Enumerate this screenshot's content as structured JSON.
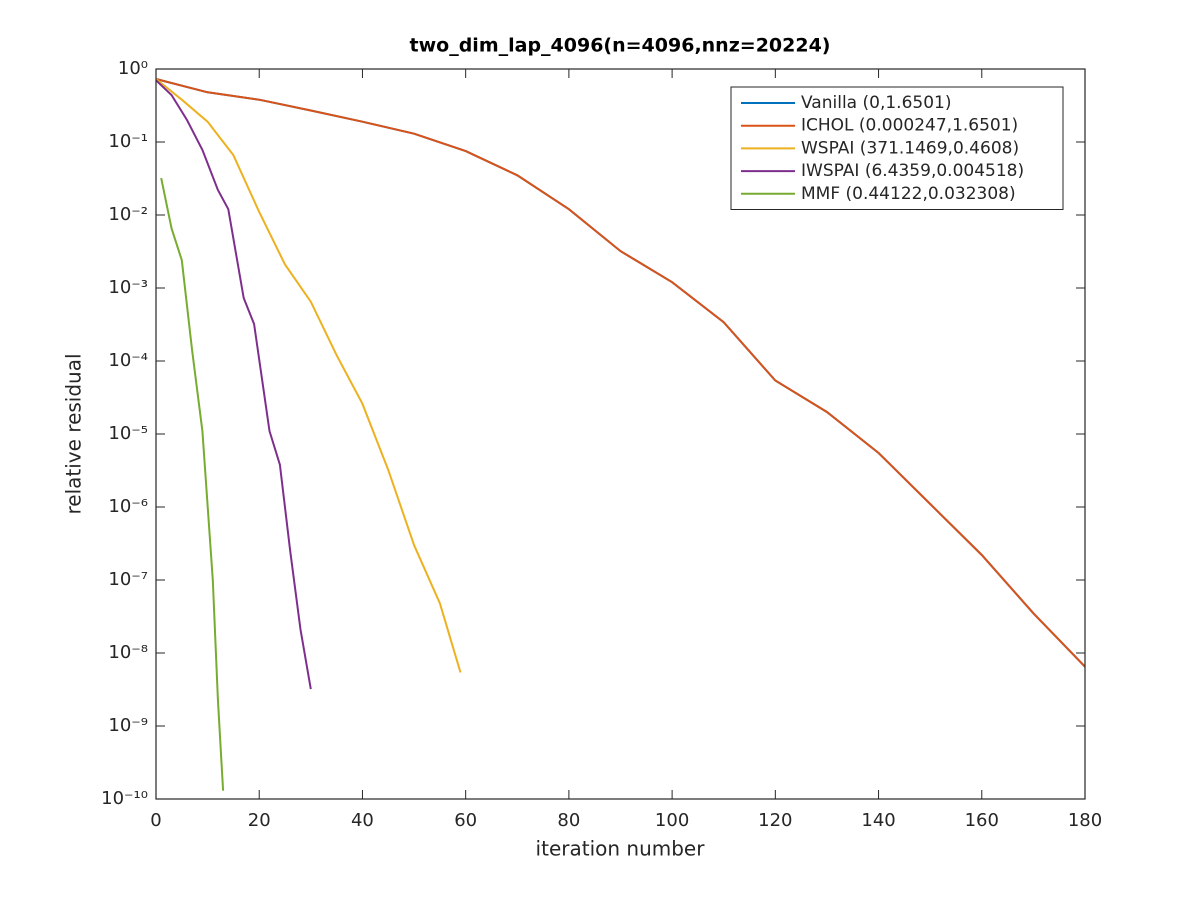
{
  "chart_data": {
    "type": "line",
    "title": "two_dim_lap_4096(n=4096,nnz=20224)",
    "x_label": "iteration number",
    "y_label": "relative residual",
    "xlim": [
      0,
      180
    ],
    "xticks": [
      0,
      20,
      40,
      60,
      80,
      100,
      120,
      140,
      160,
      180
    ],
    "ylim": [
      1e-10,
      1
    ],
    "ylog": true,
    "yticks": [
      {
        "value": 1,
        "label": "10⁰"
      },
      {
        "value": 0.1,
        "label": "10⁻¹"
      },
      {
        "value": 0.01,
        "label": "10⁻²"
      },
      {
        "value": 0.001,
        "label": "10⁻³"
      },
      {
        "value": 0.0001,
        "label": "10⁻⁴"
      },
      {
        "value": 1e-05,
        "label": "10⁻⁵"
      },
      {
        "value": 1e-06,
        "label": "10⁻⁶"
      },
      {
        "value": 1e-07,
        "label": "10⁻⁷"
      },
      {
        "value": 1e-08,
        "label": "10⁻⁸"
      },
      {
        "value": 1e-09,
        "label": "10⁻⁹"
      },
      {
        "value": 1e-10,
        "label": "10⁻¹⁰"
      }
    ],
    "legend": "upper right",
    "series": [
      {
        "name": "Vanilla (0,1.6501)",
        "color": "#0072BD",
        "x": [
          0,
          10,
          20,
          30,
          40,
          50,
          60,
          70,
          80,
          90,
          100,
          110,
          120,
          130,
          140,
          150,
          160,
          170,
          180
        ],
        "values": [
          0.73,
          0.48,
          0.38,
          0.27,
          0.19,
          0.13,
          0.075,
          0.035,
          0.012,
          0.0032,
          0.0012,
          0.00034,
          5.4e-05,
          2e-05,
          5.5e-06,
          1.1e-06,
          2.2e-07,
          3.5e-08,
          6.5e-09
        ]
      },
      {
        "name": "ICHOL (0.000247,1.6501)",
        "color": "#D95319",
        "x": [
          0,
          10,
          20,
          30,
          40,
          50,
          60,
          70,
          80,
          90,
          100,
          110,
          120,
          130,
          140,
          150,
          160,
          170,
          180
        ],
        "values": [
          0.73,
          0.48,
          0.38,
          0.27,
          0.19,
          0.13,
          0.075,
          0.035,
          0.012,
          0.0032,
          0.0012,
          0.00034,
          5.4e-05,
          2e-05,
          5.5e-06,
          1.1e-06,
          2.2e-07,
          3.5e-08,
          6.5e-09
        ]
      },
      {
        "name": "WSPAI (371.1469,0.4608)",
        "color": "#EDB120",
        "x": [
          0,
          5,
          10,
          15,
          20,
          25,
          30,
          35,
          40,
          45,
          50,
          55,
          59
        ],
        "values": [
          0.73,
          0.38,
          0.19,
          0.066,
          0.011,
          0.0021,
          0.00065,
          0.00012,
          2.6e-05,
          3.2e-06,
          3e-07,
          4.8e-08,
          5.4e-09
        ]
      },
      {
        "name": "IWSPAI (6.4359,0.004518)",
        "color": "#7E2F8E",
        "x": [
          0,
          3,
          6,
          9,
          12,
          14,
          17,
          19,
          22,
          24,
          26,
          28,
          30
        ],
        "values": [
          0.7,
          0.44,
          0.2,
          0.078,
          0.022,
          0.012,
          0.00073,
          0.00032,
          1.1e-05,
          3.8e-06,
          2.5e-07,
          2.1e-08,
          3.2e-09
        ]
      },
      {
        "name": "MMF (0.44122,0.032308)",
        "color": "#77AC30",
        "x": [
          1,
          3,
          5,
          7,
          9,
          11,
          12,
          13
        ],
        "values": [
          0.032,
          0.0066,
          0.0024,
          0.00014,
          1.1e-05,
          1e-07,
          2.3e-09,
          1.3e-10
        ]
      }
    ]
  }
}
